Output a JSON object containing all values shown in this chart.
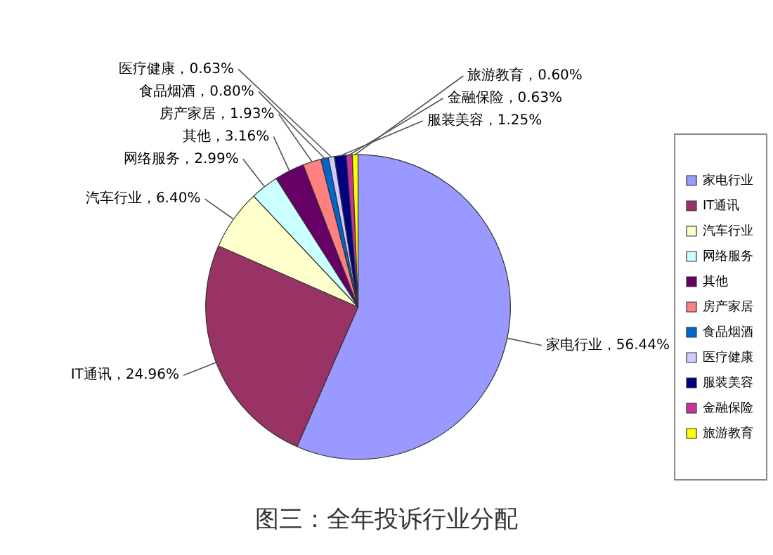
{
  "chart_data": {
    "type": "pie",
    "title": "图三：全年投诉行业分配",
    "categories": [
      "家电行业",
      "IT通讯",
      "汽车行业",
      "网络服务",
      "其他",
      "房产家居",
      "食品烟酒",
      "医疗健康",
      "服装美容",
      "金融保险",
      "旅游教育"
    ],
    "values": [
      56.44,
      24.96,
      6.4,
      2.99,
      3.16,
      1.93,
      0.8,
      0.63,
      1.25,
      0.63,
      0.6
    ],
    "colors": [
      "#9999ff",
      "#993366",
      "#ffffcc",
      "#ccffff",
      "#660066",
      "#ff8080",
      "#0066cc",
      "#ccccff",
      "#000080",
      "#cc3399",
      "#ffff00"
    ],
    "value_labels": [
      "家电行业，56.44%",
      "IT通讯，24.96%",
      "汽车行业，6.40%",
      "网络服务，2.99%",
      "其他，3.16%",
      "房产家居，1.93%",
      "食品烟酒，0.80%",
      "医疗健康，0.63%",
      "服装美容，1.25%",
      "金融保险，0.63%",
      "旅游教育，0.60%"
    ],
    "legend": "right"
  }
}
